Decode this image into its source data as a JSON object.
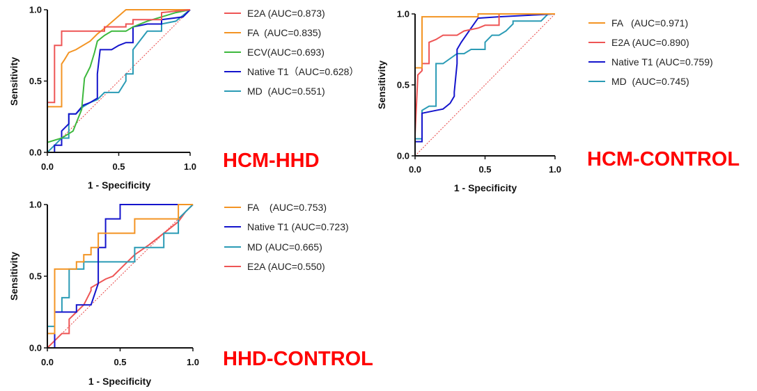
{
  "chart_data": [
    {
      "type": "line",
      "title": "HCM-HHD",
      "title_color": "#ff0000",
      "xlabel": "1 - Specificity",
      "ylabel": "Sensitivity",
      "xlim": [
        0,
        1
      ],
      "ylim": [
        0,
        1
      ],
      "xticks": [
        "0.0",
        "0.5",
        "1.0"
      ],
      "yticks": [
        "0.0",
        "0.5",
        "1.0"
      ],
      "reference_line": {
        "from": [
          0,
          0
        ],
        "to": [
          1,
          1
        ],
        "style": "dotted",
        "color": "#e84040"
      },
      "series": [
        {
          "name": "E2A",
          "legend": "E2A (AUC=0.873)",
          "auc": 0.873,
          "color": "#ee5555",
          "x": [
            0,
            0,
            0.05,
            0.05,
            0.1,
            0.1,
            0.4,
            0.4,
            0.55,
            0.55,
            0.6,
            0.6,
            0.8,
            0.8,
            1
          ],
          "y": [
            0,
            0.35,
            0.35,
            0.75,
            0.75,
            0.85,
            0.85,
            0.88,
            0.88,
            0.9,
            0.9,
            0.93,
            0.93,
            0.98,
            1
          ]
        },
        {
          "name": "FA",
          "legend": "FA  (AUC=0.835)",
          "auc": 0.835,
          "color": "#f39423",
          "x": [
            0,
            0,
            0.1,
            0.1,
            0.12,
            0.15,
            0.2,
            0.3,
            0.35,
            0.4,
            0.55,
            0.6,
            0.8,
            1
          ],
          "y": [
            0,
            0.32,
            0.32,
            0.62,
            0.65,
            0.7,
            0.72,
            0.78,
            0.83,
            0.87,
            1,
            1,
            1,
            1
          ]
        },
        {
          "name": "ECV",
          "legend": "ECV(AUC=0.693)",
          "auc": 0.693,
          "color": "#3cb83c",
          "x": [
            0,
            0.1,
            0.18,
            0.2,
            0.24,
            0.26,
            0.3,
            0.33,
            0.35,
            0.4,
            0.45,
            0.55,
            0.6,
            0.7,
            0.8,
            0.9,
            1
          ],
          "y": [
            0.07,
            0.1,
            0.15,
            0.2,
            0.3,
            0.52,
            0.6,
            0.7,
            0.78,
            0.82,
            0.85,
            0.85,
            0.88,
            0.92,
            0.95,
            0.98,
            1
          ]
        },
        {
          "name": "Native T1",
          "legend": "Native T1（AUC=0.628）",
          "auc": 0.628,
          "color": "#1414cc",
          "x": [
            0,
            0.05,
            0.05,
            0.1,
            0.1,
            0.15,
            0.15,
            0.2,
            0.25,
            0.3,
            0.35,
            0.35,
            0.37,
            0.4,
            0.45,
            0.5,
            0.55,
            0.6,
            0.6,
            0.7,
            0.8,
            0.8,
            0.95,
            1
          ],
          "y": [
            0,
            0,
            0.05,
            0.05,
            0.15,
            0.2,
            0.27,
            0.27,
            0.33,
            0.35,
            0.38,
            0.55,
            0.72,
            0.72,
            0.72,
            0.75,
            0.77,
            0.77,
            0.88,
            0.9,
            0.9,
            0.93,
            0.95,
            1
          ]
        },
        {
          "name": "MD",
          "legend": "MD  (AUC=0.551)",
          "auc": 0.551,
          "color": "#2a9bb5",
          "x": [
            0,
            0.05,
            0.1,
            0.15,
            0.15,
            0.2,
            0.25,
            0.3,
            0.35,
            0.4,
            0.5,
            0.55,
            0.55,
            0.6,
            0.6,
            0.7,
            0.8,
            0.8,
            0.9,
            1
          ],
          "y": [
            0,
            0.05,
            0.1,
            0.1,
            0.27,
            0.27,
            0.32,
            0.35,
            0.37,
            0.42,
            0.42,
            0.5,
            0.55,
            0.55,
            0.72,
            0.85,
            0.85,
            0.9,
            0.92,
            1
          ]
        }
      ]
    },
    {
      "type": "line",
      "title": "HCM-CONTROL",
      "title_color": "#ff0000",
      "xlabel": "1 - Specificity",
      "ylabel": "Sensitivity",
      "xlim": [
        0,
        1
      ],
      "ylim": [
        0,
        1
      ],
      "xticks": [
        "0.0",
        "0.5",
        "1.0"
      ],
      "yticks": [
        "0.0",
        "0.5",
        "1.0"
      ],
      "reference_line": {
        "from": [
          0,
          0
        ],
        "to": [
          1,
          1
        ],
        "style": "dotted",
        "color": "#e84040"
      },
      "series": [
        {
          "name": "FA",
          "legend": "FA   (AUC=0.971)",
          "auc": 0.971,
          "color": "#f39423",
          "x": [
            0,
            0,
            0.05,
            0.05,
            0.45,
            0.45,
            1
          ],
          "y": [
            0,
            0.62,
            0.62,
            0.98,
            0.98,
            1,
            1
          ]
        },
        {
          "name": "E2A",
          "legend": "E2A (AUC=0.890)",
          "auc": 0.89,
          "color": "#ee5555",
          "x": [
            0,
            0,
            0.02,
            0.05,
            0.05,
            0.1,
            0.1,
            0.15,
            0.2,
            0.3,
            0.35,
            0.45,
            0.5,
            0.6,
            0.6,
            1
          ],
          "y": [
            0,
            0.15,
            0.57,
            0.6,
            0.65,
            0.65,
            0.8,
            0.82,
            0.85,
            0.85,
            0.88,
            0.9,
            0.92,
            0.92,
            1,
            1
          ]
        },
        {
          "name": "Native T1",
          "legend": "Native T1 (AUC=0.759)",
          "auc": 0.759,
          "color": "#1414cc",
          "x": [
            0,
            0,
            0.05,
            0.05,
            0.15,
            0.2,
            0.25,
            0.28,
            0.28,
            0.3,
            0.3,
            0.33,
            0.4,
            0.45,
            0.6,
            1
          ],
          "y": [
            0,
            0.1,
            0.1,
            0.3,
            0.32,
            0.33,
            0.37,
            0.42,
            0.45,
            0.65,
            0.75,
            0.8,
            0.9,
            0.97,
            0.98,
            1
          ]
        },
        {
          "name": "MD",
          "legend": "MD  (AUC=0.745)",
          "auc": 0.745,
          "color": "#2a9bb5",
          "x": [
            0,
            0,
            0.05,
            0.05,
            0.1,
            0.15,
            0.15,
            0.2,
            0.3,
            0.35,
            0.4,
            0.45,
            0.5,
            0.5,
            0.55,
            0.6,
            0.65,
            0.7,
            0.7,
            0.9,
            0.95,
            1
          ],
          "y": [
            0,
            0.12,
            0.12,
            0.32,
            0.35,
            0.35,
            0.65,
            0.65,
            0.72,
            0.72,
            0.75,
            0.75,
            0.75,
            0.8,
            0.85,
            0.85,
            0.88,
            0.93,
            0.95,
            0.95,
            1,
            1
          ]
        }
      ]
    },
    {
      "type": "line",
      "title": "HHD-CONTROL",
      "title_color": "#ff0000",
      "xlabel": "1 - Specificity",
      "ylabel": "Sensitivity",
      "xlim": [
        0,
        1
      ],
      "ylim": [
        0,
        1
      ],
      "xticks": [
        "0.0",
        "0.5",
        "1.0"
      ],
      "yticks": [
        "0.0",
        "0.5",
        "1.0"
      ],
      "reference_line": {
        "from": [
          0,
          0
        ],
        "to": [
          1,
          1
        ],
        "style": "dotted",
        "color": "#e84040"
      },
      "series": [
        {
          "name": "FA",
          "legend": "FA    (AUC=0.753)",
          "auc": 0.753,
          "color": "#f39423",
          "x": [
            0,
            0,
            0.05,
            0.05,
            0.2,
            0.2,
            0.25,
            0.25,
            0.3,
            0.3,
            0.35,
            0.35,
            0.4,
            0.4,
            0.6,
            0.6,
            0.9,
            0.9,
            1
          ],
          "y": [
            0,
            0.1,
            0.1,
            0.55,
            0.55,
            0.6,
            0.6,
            0.65,
            0.65,
            0.7,
            0.7,
            0.8,
            0.8,
            0.8,
            0.8,
            0.9,
            0.9,
            1,
            1
          ]
        },
        {
          "name": "Native T1",
          "legend": "Native T1 (AUC=0.723)",
          "auc": 0.723,
          "color": "#1414cc",
          "x": [
            0,
            0.05,
            0.05,
            0.2,
            0.2,
            0.25,
            0.3,
            0.35,
            0.35,
            0.4,
            0.4,
            0.5,
            0.5,
            1
          ],
          "y": [
            0,
            0,
            0.25,
            0.25,
            0.3,
            0.3,
            0.3,
            0.45,
            0.7,
            0.7,
            0.9,
            0.9,
            1,
            1
          ]
        },
        {
          "name": "MD",
          "legend": "MD  (AUC=0.665)",
          "auc": 0.665,
          "color": "#2a9bb5",
          "x": [
            0,
            0,
            0.05,
            0.05,
            0.1,
            0.1,
            0.15,
            0.15,
            0.25,
            0.25,
            0.4,
            0.4,
            0.6,
            0.6,
            0.8,
            0.8,
            0.9,
            0.9,
            1
          ],
          "y": [
            0,
            0.15,
            0.15,
            0.25,
            0.25,
            0.35,
            0.35,
            0.55,
            0.55,
            0.6,
            0.6,
            0.6,
            0.6,
            0.7,
            0.7,
            0.8,
            0.8,
            0.9,
            1
          ]
        },
        {
          "name": "E2A",
          "legend": "E2A (AUC=0.550)",
          "auc": 0.55,
          "color": "#ee5555",
          "x": [
            0,
            0.05,
            0.1,
            0.15,
            0.15,
            0.2,
            0.25,
            0.3,
            0.3,
            0.35,
            0.4,
            0.45,
            0.5,
            0.55,
            0.6,
            0.7,
            0.8,
            0.9,
            0.95,
            1
          ],
          "y": [
            0,
            0.05,
            0.1,
            0.1,
            0.2,
            0.25,
            0.3,
            0.4,
            0.42,
            0.45,
            0.48,
            0.5,
            0.55,
            0.6,
            0.65,
            0.72,
            0.8,
            0.88,
            0.95,
            1
          ]
        }
      ]
    }
  ]
}
